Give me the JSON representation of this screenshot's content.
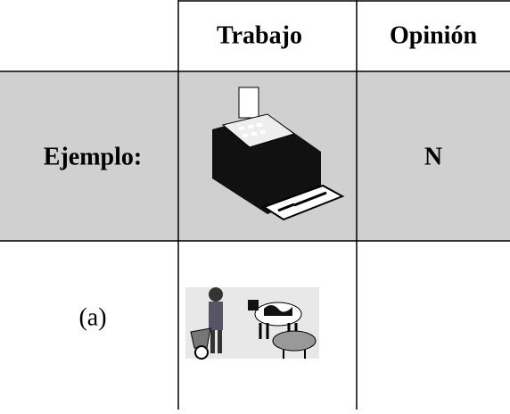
{
  "table": {
    "header": [
      "Trabajo",
      "Opinión"
    ],
    "rows": [
      {
        "label": "Ejemplo:",
        "opinion": "N"
      },
      {
        "label": "(a)"
      }
    ]
  }
}
